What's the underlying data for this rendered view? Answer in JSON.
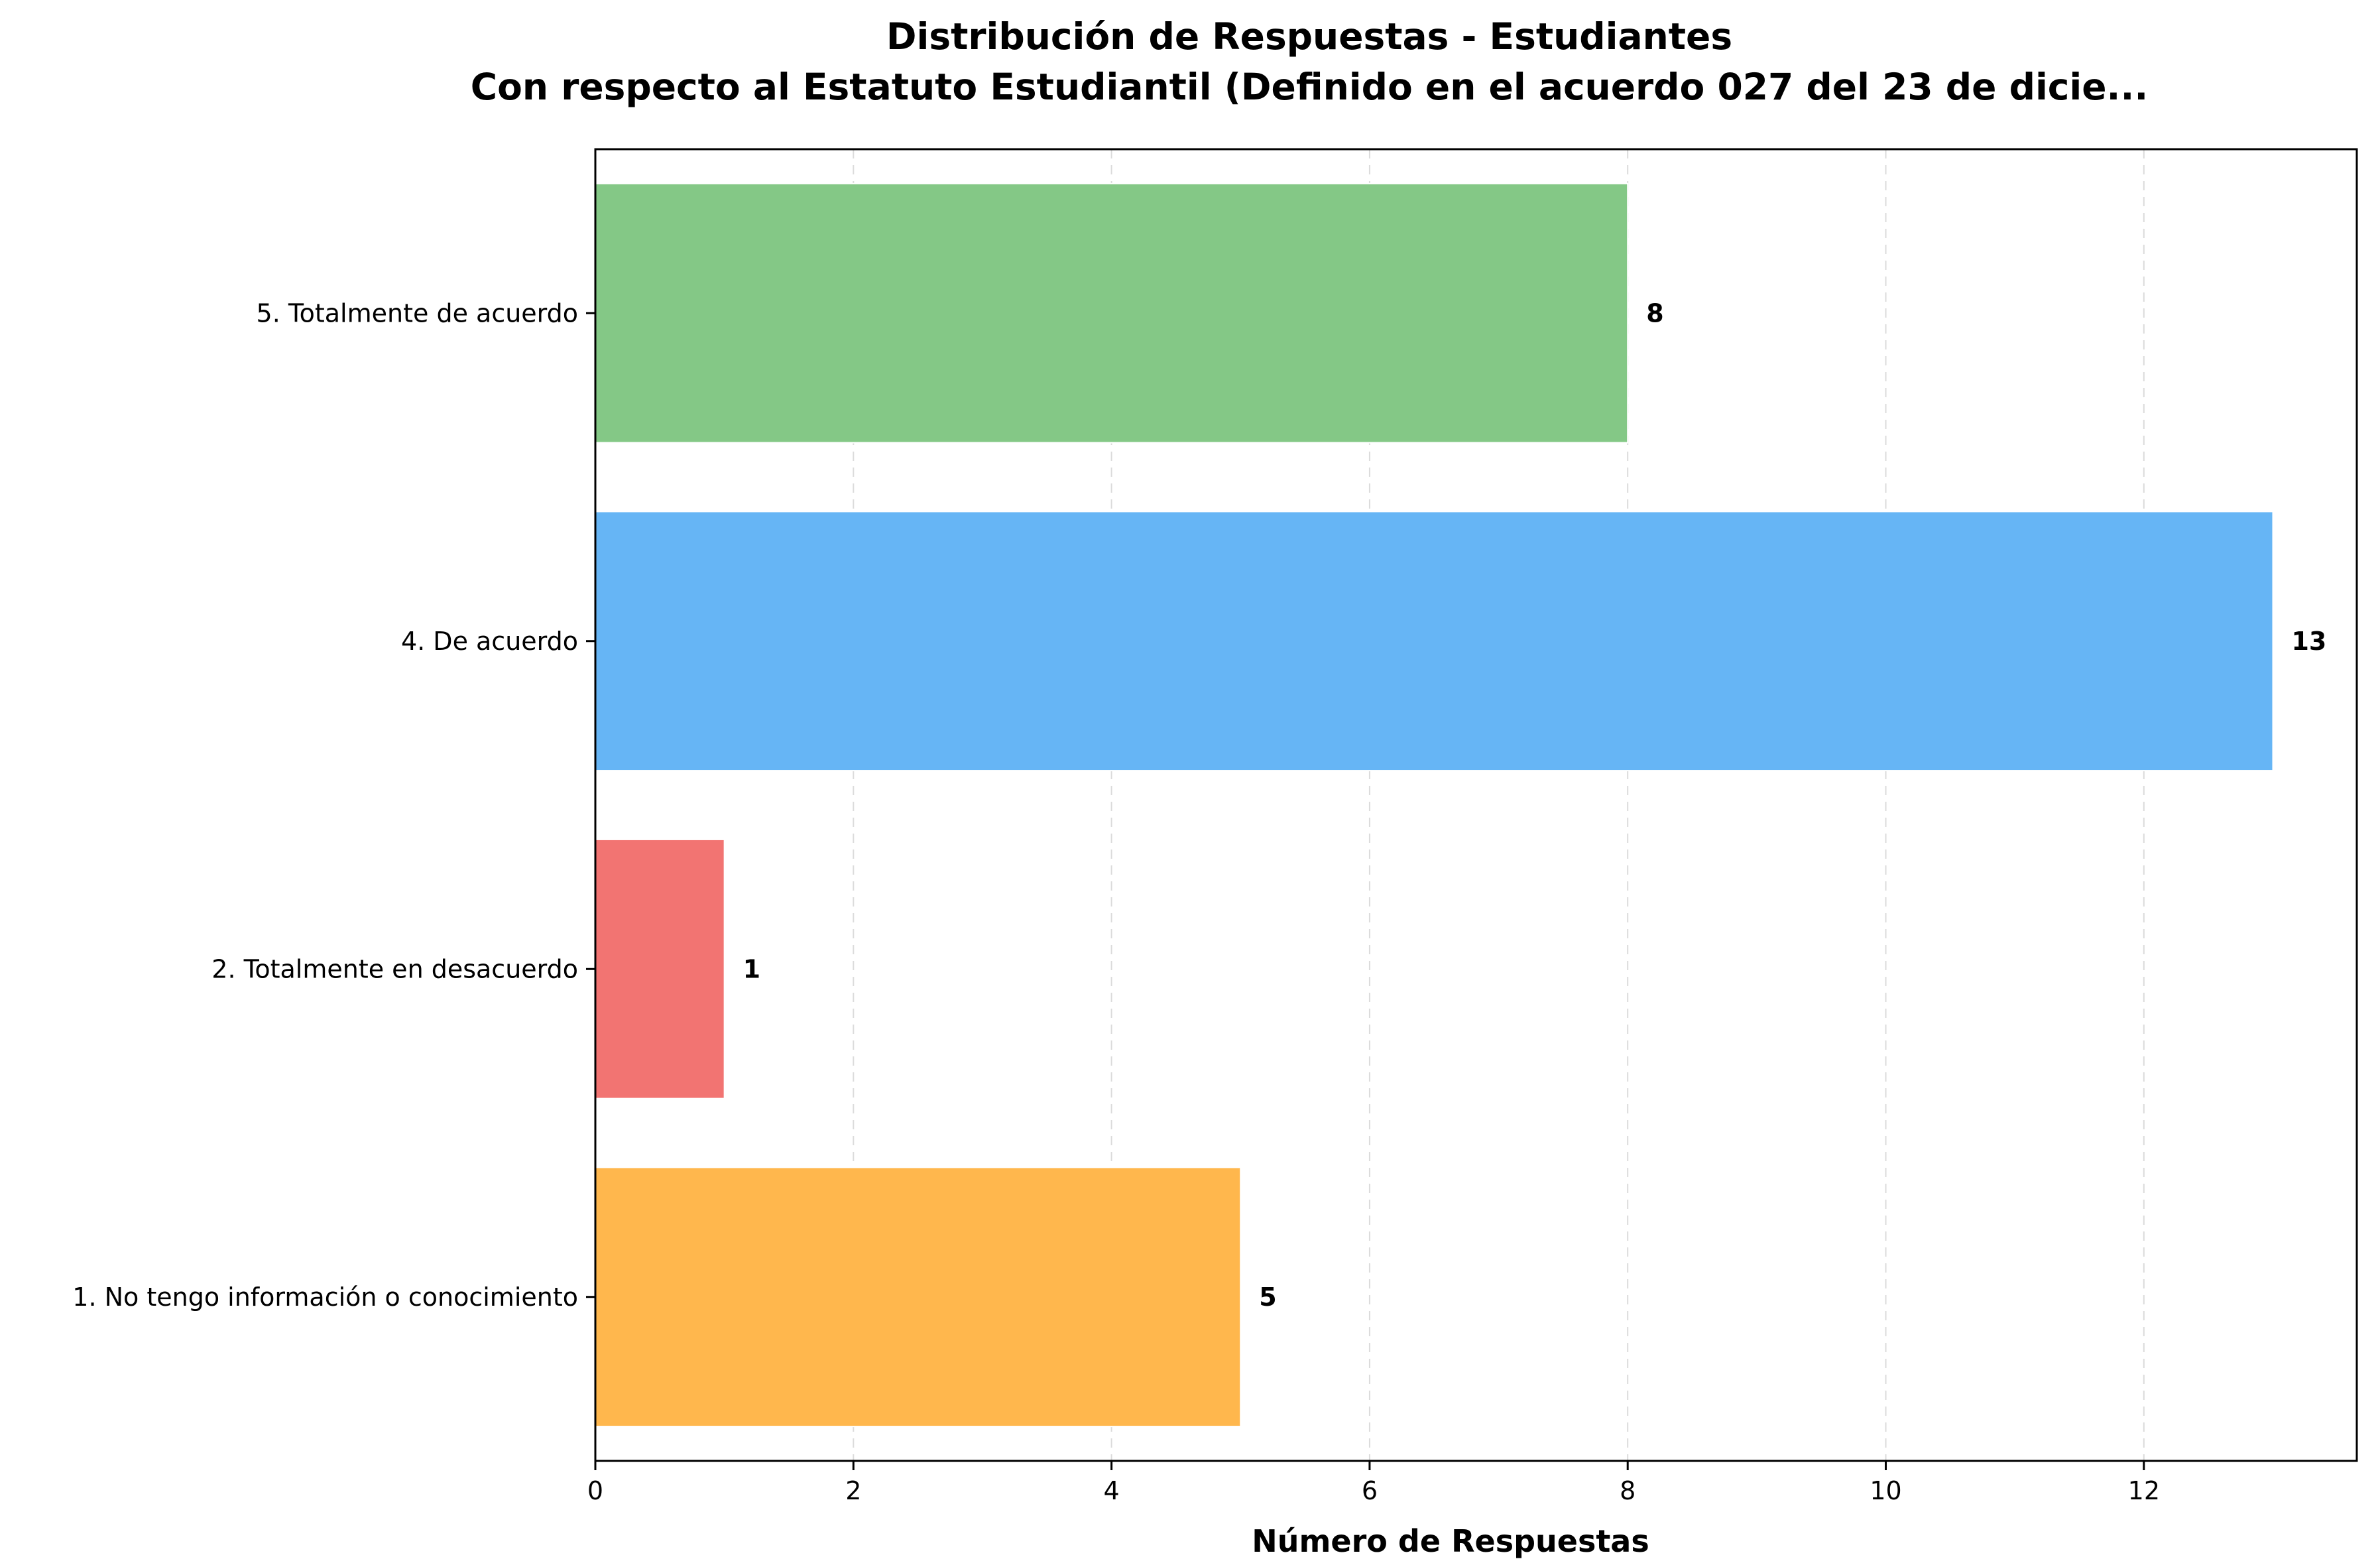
{
  "chart_data": {
    "type": "bar",
    "orientation": "horizontal",
    "title": "Distribución de Respuestas - Estudiantes",
    "subtitle": "Con respecto al Estatuto Estudiantil (Definido en el acuerdo 027 del 23 de dicie...",
    "xlabel": "Número de Respuestas",
    "ylabel": "",
    "categories": [
      "1. No tengo información o conocimiento",
      "2. Totalmente en desacuerdo",
      "4. De acuerdo",
      "5. Totalmente de acuerdo"
    ],
    "values": [
      5,
      1,
      13,
      8
    ],
    "colors": [
      "#ffb74d",
      "#f27472",
      "#66b5f5",
      "#84c886"
    ],
    "xlim": [
      0,
      13.65
    ],
    "xticks": [
      0,
      2,
      4,
      6,
      8,
      10,
      12
    ],
    "grid": "x-dashed",
    "legend": "none"
  }
}
